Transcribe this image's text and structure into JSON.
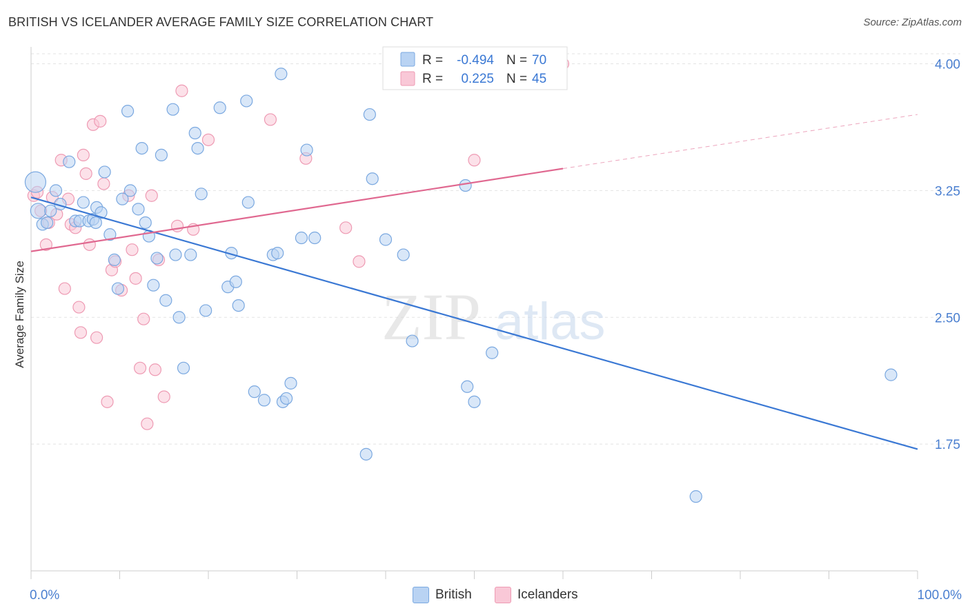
{
  "header": {
    "title": "BRITISH VS ICELANDER AVERAGE FAMILY SIZE CORRELATION CHART",
    "source": "Source: ZipAtlas.com"
  },
  "colors": {
    "british_fill": "#b9d3f3",
    "british_stroke": "#7aa8e0",
    "british_line": "#3a78d4",
    "icelanders_fill": "#f9c8d7",
    "icelanders_stroke": "#ee9ab3",
    "icelanders_line": "#e06890",
    "axis_label": "#4a7fd0",
    "grid": "#e3e3e3"
  },
  "legend_top": {
    "rows": [
      {
        "r_label": "R =",
        "r_value": "-0.494",
        "n_label": "N =",
        "n_value": "70"
      },
      {
        "r_label": "R =",
        "r_value": "0.225",
        "n_label": "N =",
        "n_value": "45"
      }
    ]
  },
  "legend_bottom": {
    "items": [
      "British",
      "Icelanders"
    ]
  },
  "watermark": {
    "zip": "ZIP",
    "atlas": "atlas"
  },
  "chart_data": {
    "type": "scatter",
    "title": "BRITISH VS ICELANDER AVERAGE FAMILY SIZE CORRELATION CHART",
    "xlabel": "",
    "ylabel": "Average Family Size",
    "xlim": [
      0,
      100
    ],
    "ylim": [
      1.0,
      4.1
    ],
    "x_tick_labels": [
      "0.0%",
      "100.0%"
    ],
    "y_ticks": [
      1.75,
      2.5,
      3.25,
      4.0
    ],
    "y_tick_labels": [
      "1.75",
      "2.50",
      "3.25",
      "4.00"
    ],
    "grid": true,
    "series": [
      {
        "name": "British",
        "r": -0.494,
        "n": 70,
        "trend": {
          "x1": 0,
          "y1": 3.21,
          "x2": 100,
          "y2": 1.72
        },
        "points": [
          [
            0.5,
            3.3
          ],
          [
            0.8,
            3.13
          ],
          [
            1.3,
            3.05
          ],
          [
            1.8,
            3.06
          ],
          [
            2.2,
            3.13
          ],
          [
            2.8,
            3.25
          ],
          [
            3.3,
            3.17
          ],
          [
            4.3,
            3.42
          ],
          [
            5.0,
            3.07
          ],
          [
            5.5,
            3.07
          ],
          [
            5.9,
            3.18
          ],
          [
            6.5,
            3.07
          ],
          [
            7.0,
            3.08
          ],
          [
            7.4,
            3.15
          ],
          [
            7.9,
            3.12
          ],
          [
            8.3,
            3.36
          ],
          [
            8.9,
            2.99
          ],
          [
            9.4,
            2.84
          ],
          [
            9.8,
            2.67
          ],
          [
            10.3,
            3.2
          ],
          [
            10.9,
            3.72
          ],
          [
            11.2,
            3.25
          ],
          [
            12.1,
            3.14
          ],
          [
            12.5,
            3.5
          ],
          [
            12.9,
            3.06
          ],
          [
            13.3,
            2.98
          ],
          [
            13.8,
            2.69
          ],
          [
            14.2,
            2.85
          ],
          [
            14.7,
            3.46
          ],
          [
            15.2,
            2.6
          ],
          [
            16.0,
            3.73
          ],
          [
            16.3,
            2.87
          ],
          [
            16.7,
            2.5
          ],
          [
            17.2,
            2.2
          ],
          [
            18.0,
            2.87
          ],
          [
            18.5,
            3.59
          ],
          [
            18.8,
            3.5
          ],
          [
            19.2,
            3.23
          ],
          [
            19.7,
            2.54
          ],
          [
            21.3,
            3.74
          ],
          [
            22.2,
            2.68
          ],
          [
            22.6,
            2.88
          ],
          [
            23.1,
            2.71
          ],
          [
            23.4,
            2.57
          ],
          [
            24.3,
            3.78
          ],
          [
            24.5,
            3.18
          ],
          [
            25.2,
            2.06
          ],
          [
            26.3,
            2.01
          ],
          [
            27.3,
            2.87
          ],
          [
            27.8,
            2.88
          ],
          [
            28.2,
            3.94
          ],
          [
            28.4,
            2.0
          ],
          [
            28.8,
            2.02
          ],
          [
            29.3,
            2.11
          ],
          [
            30.5,
            2.97
          ],
          [
            31.1,
            3.49
          ],
          [
            32.0,
            2.97
          ],
          [
            37.8,
            1.69
          ],
          [
            38.2,
            3.7
          ],
          [
            38.5,
            3.32
          ],
          [
            40.0,
            2.96
          ],
          [
            42.0,
            2.87
          ],
          [
            43.0,
            2.36
          ],
          [
            49.0,
            3.28
          ],
          [
            49.2,
            2.09
          ],
          [
            50.0,
            2.0
          ],
          [
            52.0,
            2.29
          ],
          [
            75.0,
            1.44
          ],
          [
            97.0,
            2.16
          ],
          [
            7.3,
            3.06
          ]
        ]
      },
      {
        "name": "Icelanders",
        "r": 0.225,
        "n": 45,
        "trend": {
          "x1": 0,
          "y1": 2.89,
          "x2": 60,
          "y2": 3.38
        },
        "trend_ext": {
          "x1": 60,
          "y1": 3.38,
          "x2": 100,
          "y2": 3.7
        },
        "points": [
          [
            0.3,
            3.22
          ],
          [
            0.7,
            3.24
          ],
          [
            1.1,
            3.13
          ],
          [
            1.7,
            2.93
          ],
          [
            2.0,
            3.06
          ],
          [
            2.4,
            3.21
          ],
          [
            2.9,
            3.11
          ],
          [
            3.4,
            3.43
          ],
          [
            3.8,
            2.67
          ],
          [
            4.2,
            3.2
          ],
          [
            4.5,
            3.05
          ],
          [
            5.0,
            3.03
          ],
          [
            5.4,
            2.56
          ],
          [
            5.6,
            2.41
          ],
          [
            5.9,
            3.46
          ],
          [
            6.2,
            3.35
          ],
          [
            6.6,
            2.93
          ],
          [
            7.0,
            3.64
          ],
          [
            7.4,
            2.38
          ],
          [
            7.8,
            3.66
          ],
          [
            8.2,
            3.29
          ],
          [
            8.6,
            2.0
          ],
          [
            9.1,
            2.78
          ],
          [
            9.5,
            2.83
          ],
          [
            10.2,
            2.66
          ],
          [
            11.0,
            3.22
          ],
          [
            11.4,
            2.9
          ],
          [
            11.8,
            2.73
          ],
          [
            12.3,
            2.2
          ],
          [
            12.7,
            2.49
          ],
          [
            13.1,
            1.87
          ],
          [
            13.6,
            3.22
          ],
          [
            14.0,
            2.19
          ],
          [
            14.4,
            2.84
          ],
          [
            15.0,
            2.03
          ],
          [
            16.5,
            3.04
          ],
          [
            17.0,
            3.84
          ],
          [
            18.3,
            3.02
          ],
          [
            20.0,
            3.55
          ],
          [
            27.0,
            3.67
          ],
          [
            31.0,
            3.44
          ],
          [
            35.5,
            3.03
          ],
          [
            37.0,
            2.83
          ],
          [
            50.0,
            3.43
          ],
          [
            60.0,
            4.0
          ]
        ]
      }
    ]
  }
}
